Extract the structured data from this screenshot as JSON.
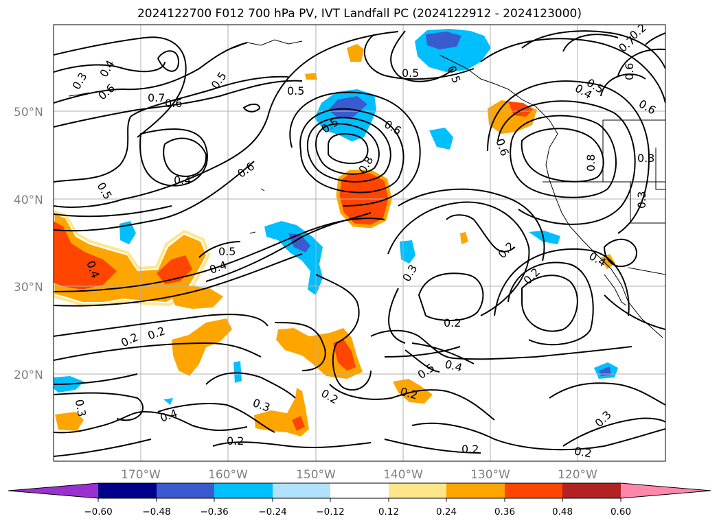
{
  "title": "2024122700 F012 700 hPa PV, IVT Landfall PC (2024122912 - 2024123000)",
  "lat_labels": [
    "50°N",
    "40°N",
    "30°N",
    "20°N"
  ],
  "lon_labels": [
    "170°W",
    "160°W",
    "150°W",
    "140°W",
    "130°W",
    "120°W"
  ],
  "colorbar": {
    "ticks": [
      "−0.60",
      "−0.48",
      "−0.36",
      "−0.24",
      "−0.12",
      "0.12",
      "0.24",
      "0.36",
      "0.48",
      "0.60"
    ],
    "colors": [
      "#9b30d0",
      "#00008b",
      "#3a5bd0",
      "#00bfff",
      "#b0e2ff",
      "#ffffff",
      "#ffe68a",
      "#ffa500",
      "#ff4500",
      "#b22222",
      "#ff88aa"
    ]
  },
  "contour_labels": [
    "0.3",
    "0.4",
    "0.2",
    "0.7",
    "0.6",
    "0.5",
    "0.6",
    "0.7",
    "0.5",
    "0.4",
    "0.5",
    "0.6",
    "0.5",
    "0.8",
    "0.5",
    "0.6",
    "0.5",
    "0.4",
    "0.5",
    "0.6",
    "0.8",
    "0.3",
    "0.3",
    "0.4",
    "0.3",
    "0.5",
    "0.4",
    "0.2",
    "0.2",
    "0.2",
    "0.2",
    "0.5",
    "0.4",
    "0.3",
    "0.2",
    "0.2",
    "0.4",
    "0.3",
    "0.2",
    "0.4",
    "0.2",
    "0.2",
    "0.3",
    "0.2",
    "0.6",
    "0.6"
  ]
}
